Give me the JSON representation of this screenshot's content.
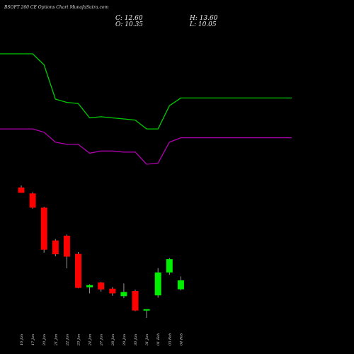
{
  "header": {
    "title": "BSOFT 260 CE Options Chart MunafaSutra.com",
    "close_label": "C: 12.60",
    "high_label": "H: 13.60",
    "open_label": "O: 10.35",
    "low_label": "L: 10.05"
  },
  "chart_data": {
    "type": "candlestick",
    "title": "BSOFT 260 CE Options Chart MunafaSutra.com",
    "categories": [
      "16 Jan",
      "17 Jan",
      "20 Jan",
      "21 Jan",
      "22 Jan",
      "23 Jan",
      "24 Jan",
      "27 Jan",
      "28 Jan",
      "29 Jan",
      "30 Jan",
      "31 Jan",
      "01 Feb",
      "03 Feb",
      "04 Feb"
    ],
    "candles": [
      {
        "date": "16 Jan",
        "open": 36.1,
        "high": 36.6,
        "low": 34.75,
        "close": 34.75
      },
      {
        "date": "17 Jan",
        "open": 34.6,
        "high": 34.9,
        "low": 30.75,
        "close": 31.0
      },
      {
        "date": "20 Jan",
        "open": 31.0,
        "high": 31.2,
        "low": 19.6,
        "close": 20.35
      },
      {
        "date": "21 Jan",
        "open": 22.7,
        "high": 23.05,
        "low": 18.7,
        "close": 19.2
      },
      {
        "date": "22 Jan",
        "open": 23.9,
        "high": 24.2,
        "low": 15.65,
        "close": 18.6
      },
      {
        "date": "23 Jan",
        "open": 19.3,
        "high": 19.75,
        "low": 10.6,
        "close": 10.7
      },
      {
        "date": "24 Jan",
        "open": 10.85,
        "high": 11.6,
        "low": 9.3,
        "close": 11.4
      },
      {
        "date": "27 Jan",
        "open": 12.05,
        "high": 12.2,
        "low": 9.75,
        "close": 10.3
      },
      {
        "date": "28 Jan",
        "open": 10.5,
        "high": 10.9,
        "low": 8.7,
        "close": 9.3
      },
      {
        "date": "29 Jan",
        "open": 8.6,
        "high": 11.8,
        "low": 8.1,
        "close": 9.65
      },
      {
        "date": "30 Jan",
        "open": 9.9,
        "high": 10.25,
        "low": 4.8,
        "close": 4.95
      },
      {
        "date": "31 Jan",
        "open": 5.1,
        "high": 5.2,
        "low": 3.1,
        "close": 5.3
      },
      {
        "date": "01 Feb",
        "open": 8.8,
        "high": 15.7,
        "low": 8.2,
        "close": 14.6
      },
      {
        "date": "03 Feb",
        "open": 14.6,
        "high": 18.25,
        "low": 14.0,
        "close": 17.95
      },
      {
        "date": "04 Feb",
        "open": 10.35,
        "high": 13.6,
        "low": 10.05,
        "close": 12.6
      }
    ],
    "overlay_lines": [
      {
        "color": "#00cc00",
        "values": [
          350,
          350,
          340,
          309,
          306,
          305,
          292,
          293,
          292,
          291,
          290,
          282,
          282,
          303,
          310
        ]
      },
      {
        "color": "#b000b0",
        "values": [
          282,
          282,
          279,
          270,
          268,
          268,
          260,
          262,
          262,
          261,
          261,
          250,
          251,
          270,
          274
        ]
      }
    ],
    "colors": {
      "up": "#00ee00",
      "down": "#ff0000",
      "wick": "#999999",
      "background": "#000000"
    },
    "grid": false
  }
}
